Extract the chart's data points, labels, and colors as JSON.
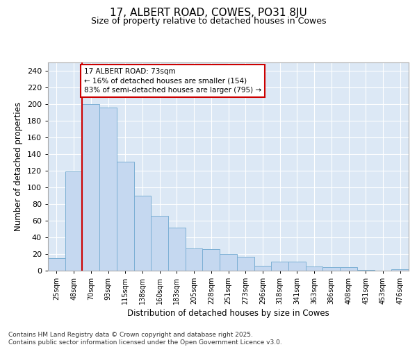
{
  "title": "17, ALBERT ROAD, COWES, PO31 8JU",
  "subtitle": "Size of property relative to detached houses in Cowes",
  "xlabel": "Distribution of detached houses by size in Cowes",
  "ylabel": "Number of detached properties",
  "categories": [
    "25sqm",
    "48sqm",
    "70sqm",
    "93sqm",
    "115sqm",
    "138sqm",
    "160sqm",
    "183sqm",
    "205sqm",
    "228sqm",
    "251sqm",
    "273sqm",
    "296sqm",
    "318sqm",
    "341sqm",
    "363sqm",
    "386sqm",
    "408sqm",
    "431sqm",
    "453sqm",
    "476sqm"
  ],
  "values": [
    15,
    119,
    200,
    196,
    131,
    90,
    66,
    52,
    27,
    26,
    20,
    17,
    6,
    11,
    11,
    5,
    4,
    4,
    1,
    0,
    2
  ],
  "bar_color": "#c5d8f0",
  "bar_edge_color": "#7bafd4",
  "bg_color": "#dce8f5",
  "grid_color": "#ffffff",
  "property_line_color": "#cc0000",
  "annotation_line1": "17 ALBERT ROAD: 73sqm",
  "annotation_line2": "← 16% of detached houses are smaller (154)",
  "annotation_line3": "83% of semi-detached houses are larger (795) →",
  "annotation_box_color": "#cc0000",
  "footnote": "Contains HM Land Registry data © Crown copyright and database right 2025.\nContains public sector information licensed under the Open Government Licence v3.0.",
  "fig_bg": "#ffffff",
  "ylim": [
    0,
    250
  ],
  "yticks": [
    0,
    20,
    40,
    60,
    80,
    100,
    120,
    140,
    160,
    180,
    200,
    220,
    240
  ]
}
